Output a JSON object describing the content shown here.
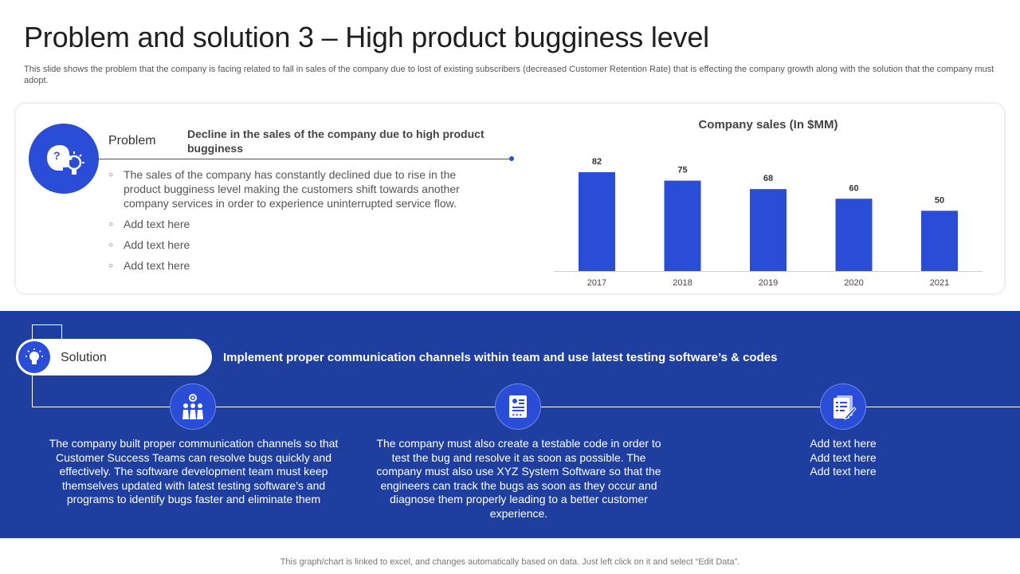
{
  "header": {
    "title": "Problem and solution 3 – High product bugginess level",
    "subtitle": "This slide shows the problem that the company is facing related to fall in sales of the company due to lost of existing subscribers (decreased Customer Retention Rate) that is effecting the company growth along with the solution that the company must adopt."
  },
  "problem": {
    "label": "Problem",
    "headline": "Decline in the sales of the company due to high product bugginess",
    "bullets": [
      "The sales of the company has constantly declined due to rise in the product bugginess level making the customers shift towards another company services in order to experience uninterrupted service flow.",
      "Add text here",
      "Add text here",
      "Add text here"
    ],
    "icon": "head-question-lightbulb-icon"
  },
  "chart_data": {
    "type": "bar",
    "title": "Company sales (In $MM)",
    "categories": [
      "2017",
      "2018",
      "2019",
      "2020",
      "2021"
    ],
    "values": [
      82,
      75,
      68,
      60,
      50
    ],
    "data_labels": [
      "82",
      "75",
      "68",
      "60",
      "50"
    ],
    "grid": false,
    "legend": "none",
    "bar_color": "#2a4dd8"
  },
  "solution": {
    "label": "Solution",
    "headline": "Implement proper communication channels within team and use latest testing software’s & codes",
    "icon": "lightbulb-gear-icon",
    "columns": [
      {
        "icon": "team-gear-icon",
        "text": "The company built proper communication channels so that Customer Success Teams can resolve bugs quickly and effectively. The software development team must keep themselves updated with latest testing software's and programs to identify bugs faster and eliminate them"
      },
      {
        "icon": "certificate-rating-icon",
        "text": "The company must also create a testable code in order to test the bug and resolve it as soon as possible. The company must also use XYZ System Software so that the engineers can track the bugs as soon as they occur and diagnose them properly leading to a better customer experience."
      },
      {
        "icon": "document-pen-icon",
        "text": "Add text here\nAdd text here\nAdd text here"
      }
    ]
  },
  "footer": {
    "note": "This graph/chart is linked to excel, and changes automatically based on data. Just left click on it and select “Edit Data”."
  },
  "colors": {
    "accent": "#2a4dd8",
    "band": "#1e3fa0"
  }
}
